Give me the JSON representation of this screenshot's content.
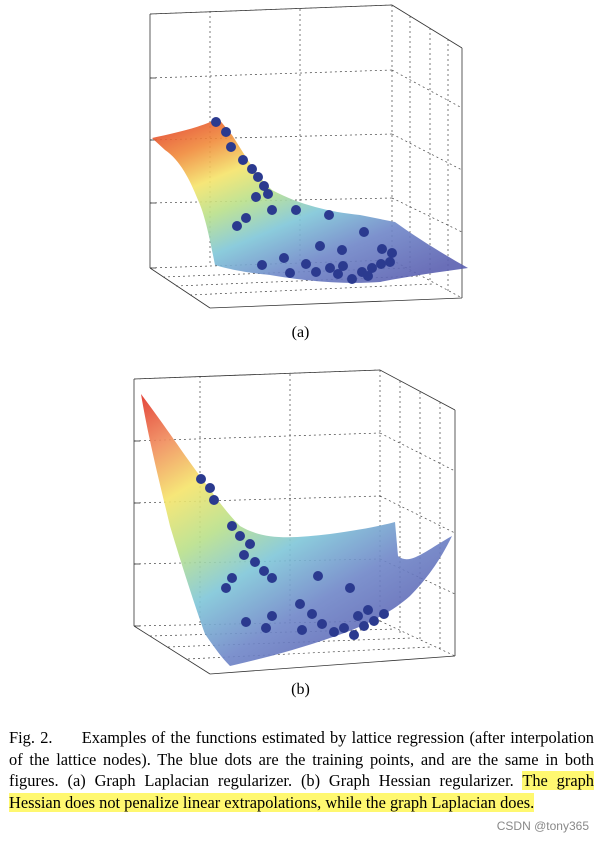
{
  "figure": {
    "panel_a_label": "(a)",
    "panel_b_label": "(b)"
  },
  "caption": {
    "fig_number": "Fig. 2.",
    "text_plain": "Examples of the functions estimated by lattice regression (after interpolation of the lattice nodes). The blue dots are the training points, and are the same in both figures. (a) Graph Laplacian regularizer. (b) Graph Hessian regularizer.",
    "text_highlighted": "The graph Hessian does not penalize linear extrapolations, while the graph Laplacian does."
  },
  "watermark": "CSDN @tony365",
  "colors": {
    "highlight": "#fff870",
    "training_points": "#2b3a8f",
    "surface_high": "#e03025",
    "surface_mid": "#f5e46a",
    "surface_low": "#5a5fb0"
  }
}
